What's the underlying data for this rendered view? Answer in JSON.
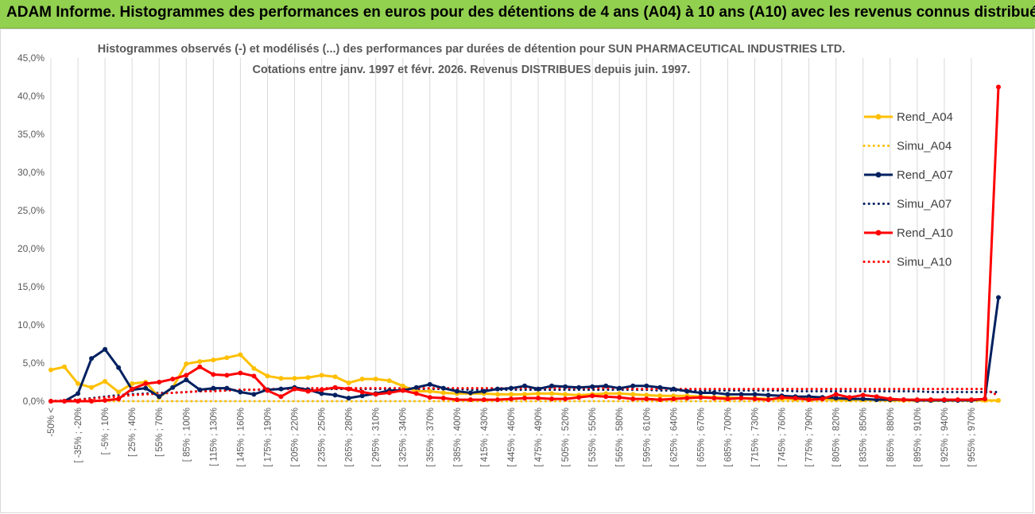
{
  "banner": {
    "title": "ADAM Informe. Histogrammes des performances en euros pour des détentions de 4 ans (A04) à 10 ans (A10) avec les revenus connus distribués"
  },
  "chart_data": {
    "type": "line",
    "title_line1": "Histogrammes observés (-) et modélisés (...) des performances par durées de détention pour SUN PHARMACEUTICAL INDUSTRIES LTD.",
    "title_line2": "Cotations entre janv. 1997 et févr. 2026. Revenus DISTRIBUES depuis juin. 1997.",
    "xlabel": "",
    "ylabel": "",
    "ylim": [
      0,
      45
    ],
    "yticks": [
      0,
      5,
      10,
      15,
      20,
      25,
      30,
      35,
      40,
      45
    ],
    "ytick_labels": [
      "0,0%",
      "5,0%",
      "10,0%",
      "15,0%",
      "20,0%",
      "25,0%",
      "30,0%",
      "35,0%",
      "40,0%",
      "45,0%"
    ],
    "grid": "vertical",
    "x_tick_labels": [
      "-50% <",
      "[ -35% ; -20%",
      "[ -5% ; 10%",
      "[ 25% ; 40%",
      "[ 55% ; 70%",
      "[ 85% ; 100%",
      "[ 115% ; 130%",
      "[ 145% ; 160%",
      "[ 175% ; 190%",
      "[ 205% ; 220%",
      "[ 235% ; 250%",
      "[ 265% ; 280%",
      "[ 295% ; 310%",
      "[ 325% ; 340%",
      "[ 355% ; 370%",
      "[ 385% ; 400%",
      "[ 415% ; 430%",
      "[ 445% ; 460%",
      "[ 475% ; 490%",
      "[ 505% ; 520%",
      "[ 535% ; 550%",
      "[ 565% ; 580%",
      "[ 595% ; 610%",
      "[ 625% ; 640%",
      "[ 655% ; 670%",
      "[ 685% ; 700%",
      "[ 715% ; 730%",
      "[ 745% ; 760%",
      "[ 775% ; 790%",
      "[ 805% ; 820%",
      "[ 835% ; 850%",
      "[ 865% ; 880%",
      "[ 895% ; 910%",
      "[ 925% ; 940%",
      "[ 955% ; 970%"
    ],
    "legend_position": "right",
    "series": [
      {
        "name": "Rend_A04",
        "color": "#ffc000",
        "style": "solid",
        "values": [
          4.1,
          4.5,
          2.3,
          1.8,
          2.6,
          1.2,
          2.3,
          2.5,
          0.5,
          1.8,
          4.9,
          5.2,
          5.4,
          5.7,
          6.1,
          4.3,
          3.3,
          3.0,
          3.0,
          3.1,
          3.4,
          3.2,
          2.4,
          2.9,
          2.9,
          2.7,
          2.0,
          1.3,
          1.3,
          1.1,
          1.0,
          1.0,
          1.0,
          0.9,
          0.9,
          0.9,
          1.0,
          1.0,
          0.9,
          0.8,
          0.9,
          1.0,
          1.0,
          0.9,
          0.8,
          0.7,
          0.7,
          0.7,
          0.6,
          0.5,
          0.5,
          0.4,
          0.4,
          0.3,
          0.3,
          0.3,
          0.3,
          0.3,
          0.2,
          0.2,
          0.2,
          0.2,
          0.1,
          0.1,
          0.1,
          0.1,
          0.1,
          0.1,
          0.1,
          0.1,
          0.1
        ]
      },
      {
        "name": "Simu_A04",
        "color": "#ffc000",
        "style": "dotted",
        "values": [
          0.0,
          0.0,
          0.0,
          0.0,
          0.0,
          0.0,
          0.0,
          0.0,
          0.0,
          0.0,
          0.0,
          0.0,
          0.0,
          0.0,
          0.0,
          0.0,
          0.0,
          0.0,
          0.0,
          0.0,
          0.0,
          0.0,
          0.0,
          0.0,
          0.0,
          0.0,
          0.0,
          0.0,
          0.0,
          0.0,
          0.0,
          0.0,
          0.0,
          0.0,
          0.0,
          0.0,
          0.0,
          0.0,
          0.0,
          0.0,
          0.0,
          0.0,
          0.0,
          0.0,
          0.0,
          0.0,
          0.0,
          0.0,
          0.0,
          0.0,
          0.0,
          0.0,
          0.0,
          0.0,
          0.0,
          0.0,
          0.0,
          0.0,
          0.0,
          0.0,
          0.0,
          0.0,
          0.0,
          0.0,
          0.0,
          0.0,
          0.0,
          0.0,
          0.0,
          0.0,
          0.0
        ]
      },
      {
        "name": "Rend_A07",
        "color": "#002060",
        "style": "solid",
        "values": [
          0.0,
          0.0,
          1.0,
          5.6,
          6.8,
          4.4,
          1.5,
          1.7,
          0.6,
          1.8,
          2.8,
          1.5,
          1.7,
          1.7,
          1.2,
          0.9,
          1.5,
          1.6,
          1.8,
          1.5,
          1.0,
          0.8,
          0.4,
          0.7,
          1.0,
          1.4,
          1.4,
          1.8,
          2.2,
          1.7,
          1.3,
          1.1,
          1.3,
          1.6,
          1.7,
          2.0,
          1.6,
          2.0,
          1.9,
          1.8,
          1.9,
          2.0,
          1.7,
          2.0,
          2.0,
          1.8,
          1.6,
          1.3,
          1.1,
          1.1,
          0.9,
          0.9,
          0.9,
          0.8,
          0.7,
          0.6,
          0.6,
          0.5,
          0.4,
          0.3,
          0.3,
          0.2,
          0.2,
          0.2,
          0.1,
          0.1,
          0.1,
          0.1,
          0.1,
          0.3,
          13.6
        ]
      },
      {
        "name": "Simu_A07",
        "color": "#002060",
        "style": "dotted",
        "values": [
          0.0,
          0.1,
          0.2,
          0.4,
          0.6,
          0.8,
          0.9,
          1.0,
          1.1,
          1.1,
          1.2,
          1.3,
          1.4,
          1.4,
          1.5,
          1.5,
          1.5,
          1.6,
          1.6,
          1.6,
          1.6,
          1.6,
          1.6,
          1.6,
          1.6,
          1.6,
          1.6,
          1.6,
          1.6,
          1.6,
          1.6,
          1.5,
          1.5,
          1.5,
          1.5,
          1.5,
          1.5,
          1.5,
          1.5,
          1.5,
          1.5,
          1.5,
          1.5,
          1.5,
          1.5,
          1.4,
          1.4,
          1.4,
          1.4,
          1.4,
          1.4,
          1.4,
          1.4,
          1.4,
          1.4,
          1.3,
          1.3,
          1.3,
          1.3,
          1.3,
          1.3,
          1.3,
          1.3,
          1.3,
          1.3,
          1.2,
          1.2,
          1.2,
          1.2,
          1.2,
          1.2
        ]
      },
      {
        "name": "Rend_A10",
        "color": "#ff0000",
        "style": "solid",
        "values": [
          0.0,
          0.0,
          0.0,
          0.0,
          0.1,
          0.3,
          1.6,
          2.3,
          2.5,
          2.9,
          3.4,
          4.5,
          3.5,
          3.4,
          3.7,
          3.3,
          1.4,
          0.6,
          1.6,
          1.3,
          1.5,
          1.8,
          1.6,
          1.2,
          0.9,
          1.1,
          1.4,
          1.0,
          0.5,
          0.4,
          0.2,
          0.2,
          0.2,
          0.2,
          0.3,
          0.4,
          0.4,
          0.3,
          0.3,
          0.5,
          0.7,
          0.6,
          0.5,
          0.3,
          0.3,
          0.2,
          0.3,
          0.4,
          0.5,
          0.4,
          0.3,
          0.4,
          0.3,
          0.2,
          0.5,
          0.4,
          0.2,
          0.3,
          0.9,
          0.5,
          0.8,
          0.6,
          0.3,
          0.2,
          0.2,
          0.2,
          0.2,
          0.2,
          0.2,
          0.3,
          41.2
        ]
      },
      {
        "name": "Simu_A10",
        "color": "#ff0000",
        "style": "dotted",
        "values": [
          0.0,
          0.1,
          0.2,
          0.3,
          0.5,
          0.6,
          0.8,
          0.9,
          1.0,
          1.1,
          1.2,
          1.3,
          1.3,
          1.4,
          1.5,
          1.5,
          1.6,
          1.6,
          1.6,
          1.7,
          1.7,
          1.7,
          1.7,
          1.7,
          1.7,
          1.7,
          1.7,
          1.7,
          1.7,
          1.7,
          1.7,
          1.7,
          1.7,
          1.7,
          1.7,
          1.7,
          1.7,
          1.7,
          1.7,
          1.7,
          1.7,
          1.7,
          1.7,
          1.6,
          1.6,
          1.6,
          1.6,
          1.6,
          1.6,
          1.6,
          1.6,
          1.6,
          1.6,
          1.6,
          1.6,
          1.6,
          1.6,
          1.6,
          1.6,
          1.6,
          1.6,
          1.6,
          1.6,
          1.6,
          1.6,
          1.6,
          1.6,
          1.6,
          1.6,
          1.6,
          0.7
        ]
      }
    ]
  }
}
